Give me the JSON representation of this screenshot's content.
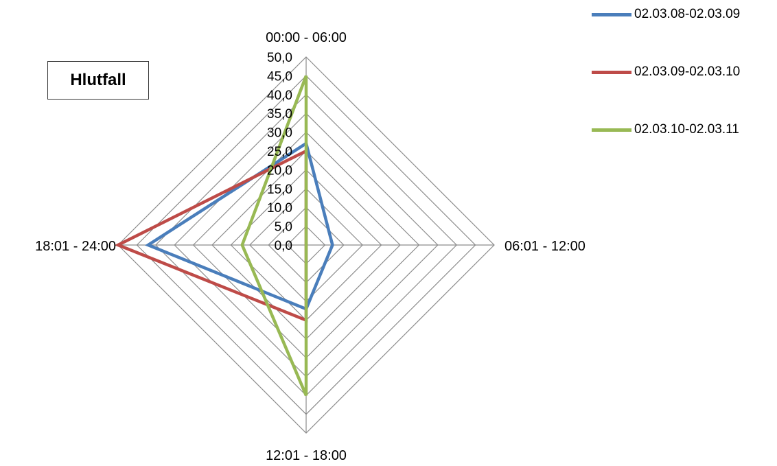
{
  "chart_data": {
    "type": "radar",
    "title": "Hlutfall",
    "categories": [
      "00:00 - 06:00",
      "06:01 - 12:00",
      "12:01 - 18:00",
      "18:01 - 24:00"
    ],
    "r_ticks": [
      "0,0",
      "5,0",
      "10,0",
      "15,0",
      "20,0",
      "25,0",
      "30,0",
      "35,0",
      "40,0",
      "45,0",
      "50,0"
    ],
    "rlim": [
      0,
      50
    ],
    "grid": true,
    "legend_position": "top-right",
    "series": [
      {
        "name": "02.03.08-02.03.09",
        "color": "#4A7EBB",
        "values": [
          27.0,
          7.0,
          17.0,
          42.0
        ]
      },
      {
        "name": "02.03.09-02.03.10",
        "color": "#BE4B48",
        "values": [
          25.0,
          0.0,
          20.0,
          50.0
        ]
      },
      {
        "name": "02.03.10-02.03.11",
        "color": "#98B954",
        "values": [
          45.0,
          0.0,
          40.0,
          17.0
        ]
      }
    ]
  }
}
